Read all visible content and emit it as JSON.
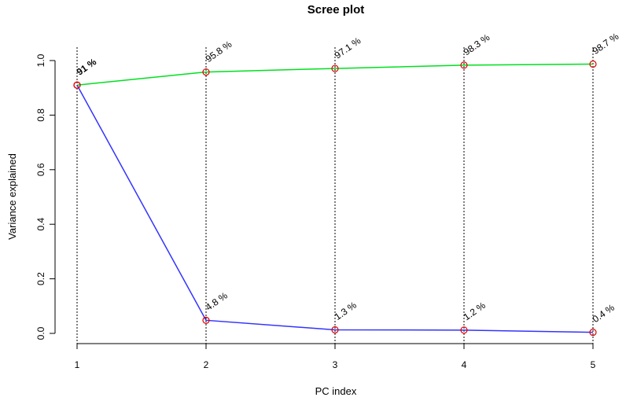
{
  "chart_data": {
    "type": "line",
    "title": "Scree plot",
    "xlabel": "PC index",
    "ylabel": "Variance explained",
    "x": [
      1,
      2,
      3,
      4,
      5
    ],
    "xlim": [
      1,
      5
    ],
    "ylim": [
      0,
      1
    ],
    "y_ticks": [
      "0.0",
      "0.2",
      "0.4",
      "0.6",
      "0.8",
      "1.0"
    ],
    "x_ticks": [
      "1",
      "2",
      "3",
      "4",
      "5"
    ],
    "series": [
      {
        "key": "cumulative",
        "values": [
          0.91,
          0.958,
          0.971,
          0.983,
          0.987
        ],
        "labels": [
          "91 %",
          "95.8 %",
          "97.1 %",
          "98.3 %",
          "98.7 %"
        ],
        "color": "#00e020"
      },
      {
        "key": "individual",
        "values": [
          0.91,
          0.048,
          0.013,
          0.012,
          0.004
        ],
        "labels": [
          "91 %",
          "4.8 %",
          "1.3 %",
          "1.2 %",
          "0.4 %"
        ],
        "color": "#3333ff"
      }
    ],
    "point_color": "#e00000",
    "vertical_guides": "dotted",
    "grid": false
  }
}
